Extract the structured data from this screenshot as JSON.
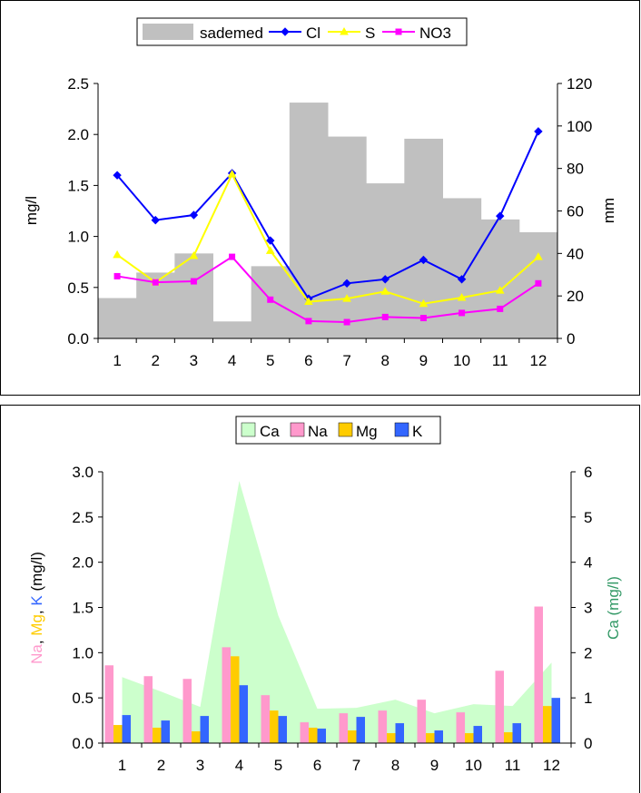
{
  "chart_data": [
    {
      "type": "bar+line",
      "categories": [
        "1",
        "2",
        "3",
        "4",
        "5",
        "6",
        "7",
        "8",
        "9",
        "10",
        "11",
        "12"
      ],
      "bar_series": {
        "name": "sademed",
        "axis": "right",
        "values": [
          19,
          31,
          40,
          8,
          34,
          111,
          95,
          73,
          94,
          66,
          56,
          50
        ],
        "color": "#c0c0c0"
      },
      "series": [
        {
          "name": "Cl",
          "axis": "left",
          "color": "#0000ff",
          "marker": "diamond",
          "values": [
            1.6,
            1.16,
            1.21,
            1.62,
            0.96,
            0.39,
            0.54,
            0.58,
            0.77,
            0.58,
            1.2,
            2.03
          ]
        },
        {
          "name": "S",
          "axis": "left",
          "color": "#ffff00",
          "marker": "triangle",
          "values": [
            0.82,
            0.55,
            0.81,
            1.61,
            0.86,
            0.36,
            0.39,
            0.46,
            0.34,
            0.4,
            0.47,
            0.8
          ]
        },
        {
          "name": "NO3",
          "axis": "left",
          "color": "#ff00ff",
          "marker": "square",
          "values": [
            0.61,
            0.55,
            0.56,
            0.8,
            0.38,
            0.17,
            0.16,
            0.21,
            0.2,
            0.25,
            0.29,
            0.54
          ]
        }
      ],
      "ylabel_left": "mg/l",
      "ylabel_right": "mm",
      "ylim_left": [
        0,
        2.5
      ],
      "yticks_left": [
        "0.0",
        "0.5",
        "1.0",
        "1.5",
        "2.0",
        "2.5"
      ],
      "ylim_right": [
        0,
        120
      ],
      "yticks_right": [
        "0",
        "20",
        "40",
        "60",
        "80",
        "100",
        "120"
      ],
      "legend_position": "top-center",
      "grid": false
    },
    {
      "type": "bar+area",
      "categories": [
        "1",
        "2",
        "3",
        "4",
        "5",
        "6",
        "7",
        "8",
        "9",
        "10",
        "11",
        "12"
      ],
      "area_series": {
        "name": "Ca",
        "axis": "right",
        "color": "#ccffcc",
        "values": [
          1.46,
          1.14,
          0.8,
          5.8,
          2.82,
          0.76,
          0.78,
          0.96,
          0.66,
          0.86,
          0.82,
          1.78
        ]
      },
      "series": [
        {
          "name": "Na",
          "axis": "left",
          "color": "#ff99cc",
          "values": [
            0.86,
            0.74,
            0.71,
            1.06,
            0.53,
            0.23,
            0.33,
            0.36,
            0.48,
            0.34,
            0.8,
            1.51
          ]
        },
        {
          "name": "Mg",
          "axis": "left",
          "color": "#ffcc00",
          "values": [
            0.2,
            0.17,
            0.13,
            0.96,
            0.36,
            0.17,
            0.14,
            0.11,
            0.11,
            0.11,
            0.12,
            0.41
          ]
        },
        {
          "name": "K",
          "axis": "left",
          "color": "#3366ff",
          "values": [
            0.31,
            0.25,
            0.3,
            0.64,
            0.3,
            0.16,
            0.29,
            0.22,
            0.14,
            0.19,
            0.22,
            0.5
          ]
        }
      ],
      "ylabel_left_parts": [
        {
          "text": "Na",
          "color": "#ff99cc"
        },
        {
          "text": ", ",
          "color": "#000000"
        },
        {
          "text": "Mg",
          "color": "#ffcc00"
        },
        {
          "text": ", ",
          "color": "#000000"
        },
        {
          "text": "K",
          "color": "#3366ff"
        },
        {
          "text": " (mg/l)",
          "color": "#000000"
        }
      ],
      "ylabel_right": "Ca (mg/l)",
      "ylabel_right_color": "#339966",
      "ylim_left": [
        0,
        3.0
      ],
      "yticks_left": [
        "0.0",
        "0.5",
        "1.0",
        "1.5",
        "2.0",
        "2.5",
        "3.0"
      ],
      "ylim_right": [
        0,
        6
      ],
      "yticks_right": [
        "0",
        "1",
        "2",
        "3",
        "4",
        "5",
        "6"
      ],
      "legend_position": "top-center",
      "grid": false
    }
  ]
}
